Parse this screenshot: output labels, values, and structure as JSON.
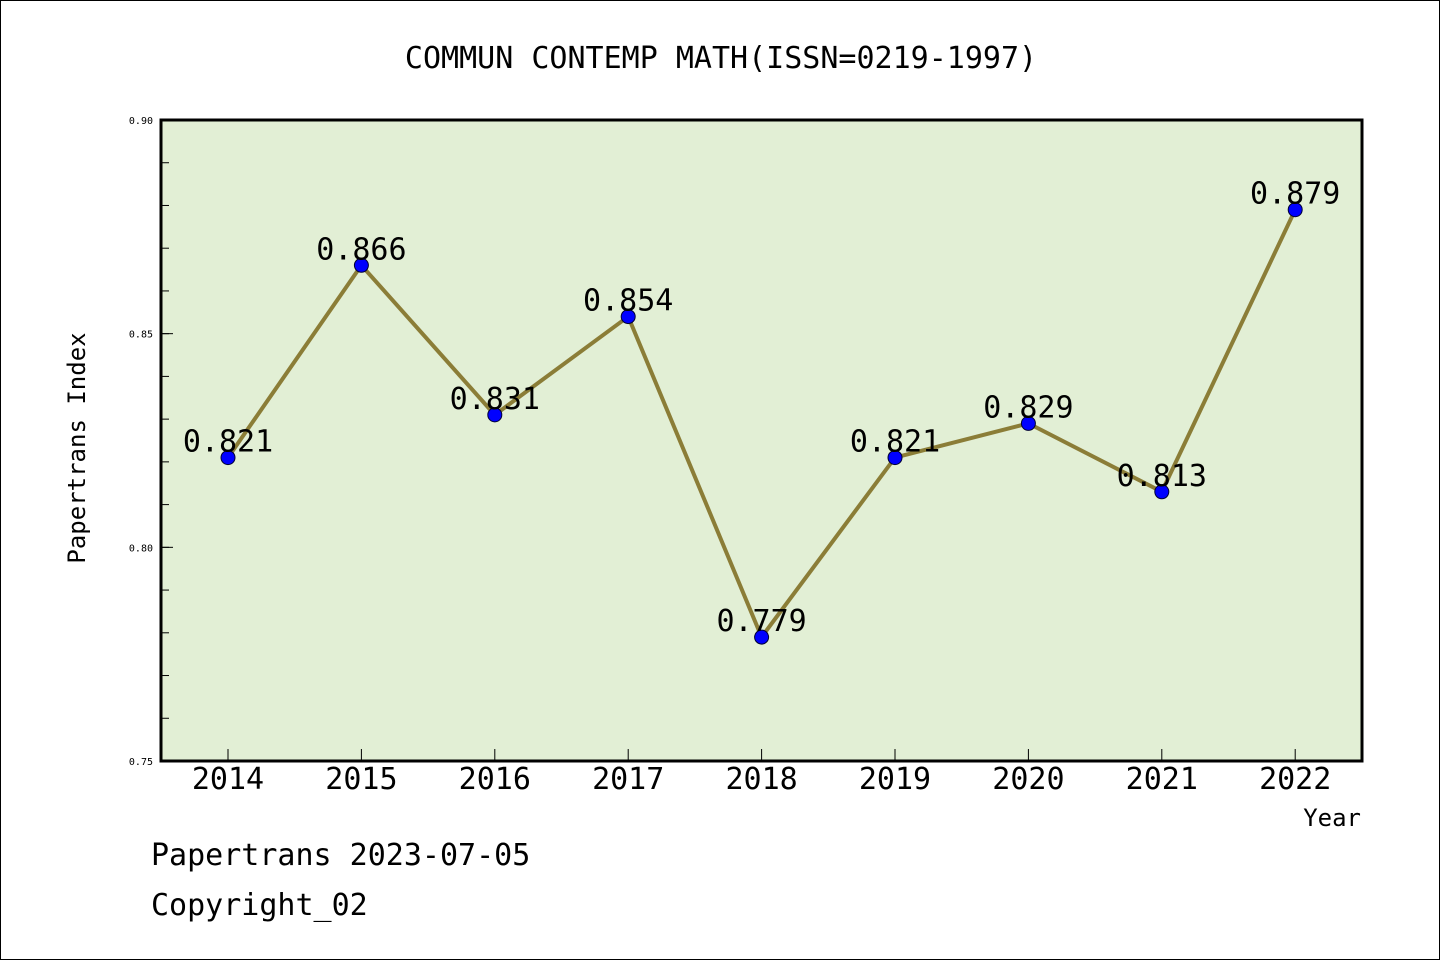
{
  "chart_data": {
    "type": "line",
    "title": "COMMUN CONTEMP MATH(ISSN=0219-1997)",
    "xlabel": "Year",
    "ylabel": "Papertrans Index",
    "categories": [
      "2014",
      "2015",
      "2016",
      "2017",
      "2018",
      "2019",
      "2020",
      "2021",
      "2022"
    ],
    "values": [
      0.821,
      0.866,
      0.831,
      0.854,
      0.779,
      0.821,
      0.829,
      0.813,
      0.879
    ],
    "data_labels": [
      "0.821",
      "0.866",
      "0.831",
      "0.854",
      "0.779",
      "0.821",
      "0.829",
      "0.813",
      "0.879"
    ],
    "ylim": [
      0.75,
      0.9
    ],
    "yticks": [
      0.75,
      0.8,
      0.85,
      0.9
    ],
    "ytick_labels": [
      "0.75",
      "0.80",
      "0.85",
      "0.90"
    ],
    "grid": false,
    "colors": {
      "plot_background": "#e2efd5",
      "line": "#8b7d37",
      "marker": "#0000ff"
    }
  },
  "footer": {
    "date_line": "Papertrans 2023-07-05",
    "copyright": "Copyright_02"
  }
}
